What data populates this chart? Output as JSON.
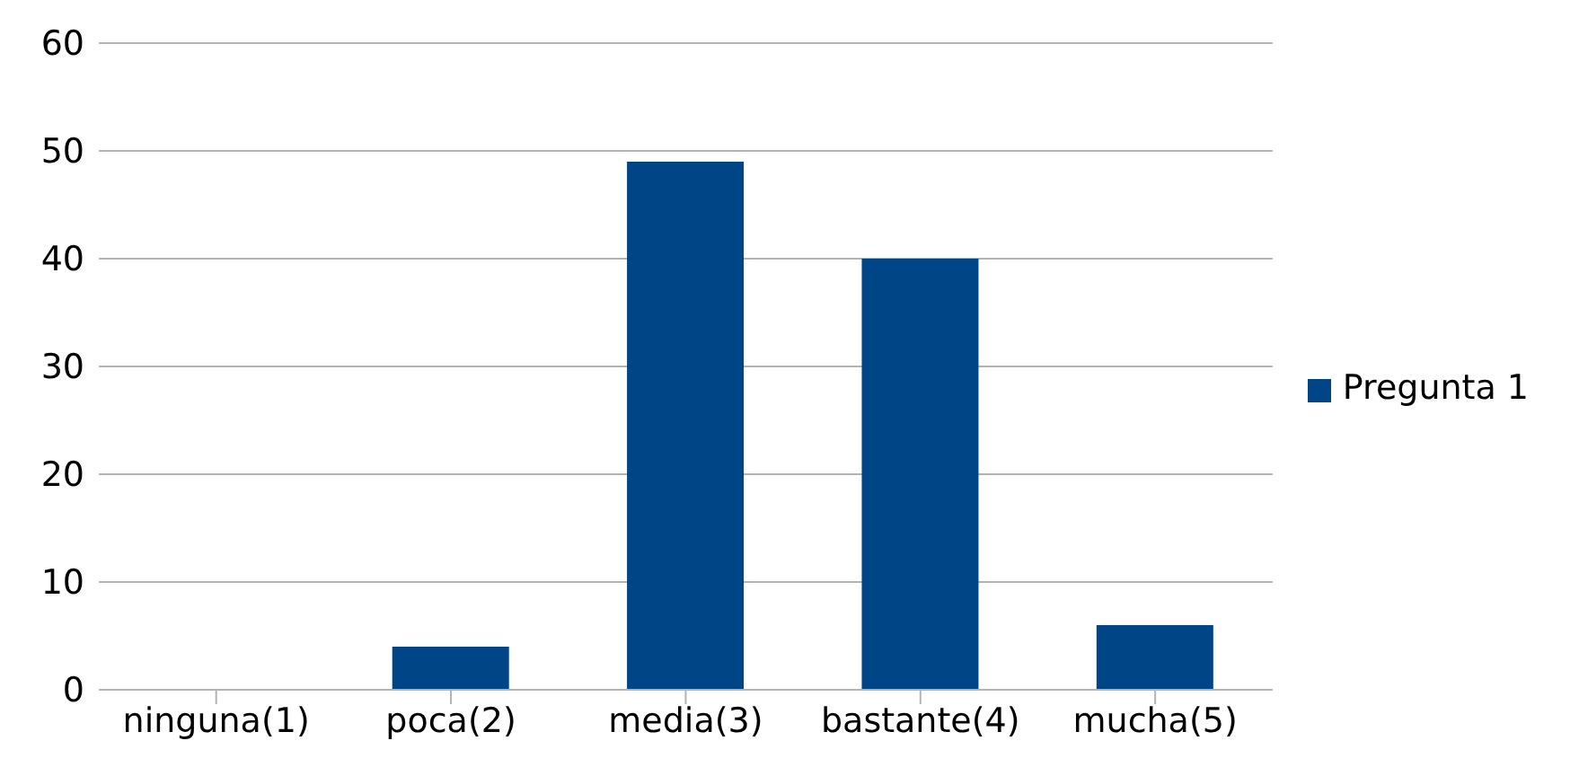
{
  "chart_data": {
    "type": "bar",
    "categories": [
      "ninguna(1)",
      "poca(2)",
      "media(3)",
      "bastante(4)",
      "mucha(5)"
    ],
    "series": [
      {
        "name": "Pregunta 1",
        "color": "#004586",
        "values": [
          0,
          4,
          49,
          40,
          6
        ]
      }
    ],
    "ylim": [
      0,
      60
    ],
    "yticks": [
      0,
      10,
      20,
      30,
      40,
      50,
      60
    ],
    "grid": "y",
    "legend": "right"
  }
}
